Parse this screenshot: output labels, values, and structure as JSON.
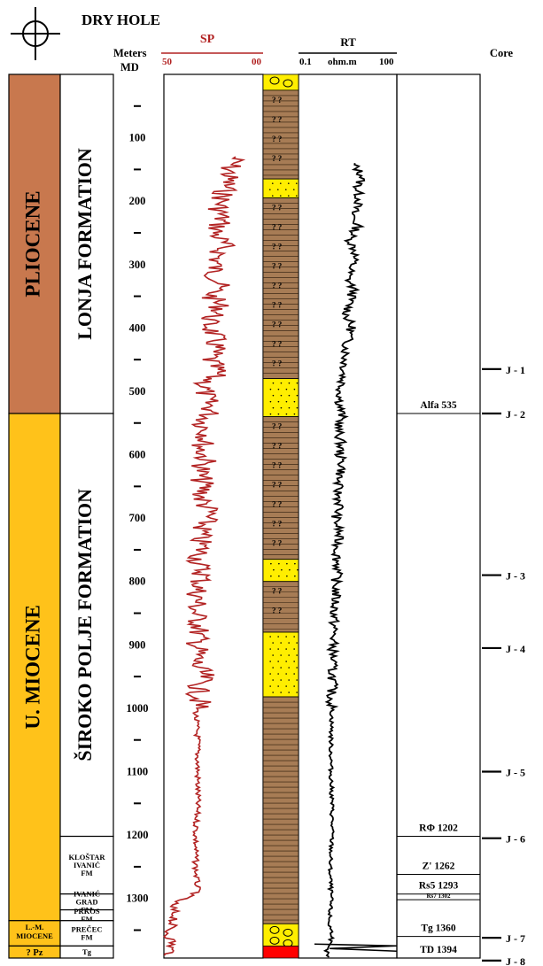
{
  "header": {
    "well_status": "DRY HOLE",
    "meters_label": "Meters",
    "md_label": "MD",
    "sp_label": "SP",
    "sp_scale_left": "50",
    "sp_scale_right": "00",
    "rt_label": "RT",
    "rt_scale_left": "0.1",
    "rt_scale_unit": "ohm.m",
    "rt_scale_right": "100",
    "core_label": "Core"
  },
  "colors": {
    "pliocene": "#c8784e",
    "miocene": "#ffc21a",
    "sand": "#ffee00",
    "shale": "#a77c55",
    "basement": "#ff0000",
    "sp_curve": "#b22222"
  },
  "chronostratigraphy": [
    {
      "label": "PLIOCENE",
      "top": 0,
      "base": 535
    },
    {
      "label": "U. MIOCENE",
      "top": 535,
      "base": 1335
    },
    {
      "label": "L.-M. MIOCENE",
      "top": 1335,
      "base": 1375
    },
    {
      "label": "? Pz",
      "top": 1375,
      "base": 1394
    }
  ],
  "formations": [
    {
      "label": "LONJA FORMATION",
      "top": 0,
      "base": 535,
      "vertical": true
    },
    {
      "label": "ŠIROKO POLJE FORMATION",
      "top": 535,
      "base": 1202,
      "vertical": true
    },
    {
      "label": "KLOŠTAR IVANIĆ FM",
      "top": 1202,
      "base": 1293,
      "vertical": false
    },
    {
      "label": "IVANIĆ GRAD FM",
      "top": 1293,
      "base": 1318,
      "vertical": false
    },
    {
      "label": "PRKOS FM",
      "top": 1318,
      "base": 1335,
      "vertical": false
    },
    {
      "label": "PREČEC FM",
      "top": 1335,
      "base": 1375,
      "vertical": false
    },
    {
      "label": "Tg",
      "top": 1375,
      "base": 1394,
      "vertical": false
    }
  ],
  "depth_ticks": {
    "labels": [
      "100",
      "200",
      "300",
      "400",
      "500",
      "600",
      "700",
      "800",
      "900",
      "1000",
      "1100",
      "1200",
      "1300"
    ],
    "minor_marker": "-"
  },
  "markers": [
    {
      "label": "Alfa 535",
      "depth": 535
    },
    {
      "label": "RΦ 1202",
      "depth": 1202
    },
    {
      "label": "Z' 1262",
      "depth": 1262
    },
    {
      "label": "Rs5 1293",
      "depth": 1293
    },
    {
      "label": "Rs7 1302",
      "depth": 1302
    },
    {
      "label": "Tg 1360",
      "depth": 1360
    },
    {
      "label": "TD 1394",
      "depth": 1394
    }
  ],
  "cores": [
    {
      "label": "J - 1",
      "depth": 465
    },
    {
      "label": "J - 2",
      "depth": 535
    },
    {
      "label": "J - 3",
      "depth": 790
    },
    {
      "label": "J - 4",
      "depth": 905
    },
    {
      "label": "J - 5",
      "depth": 1100
    },
    {
      "label": "J - 6",
      "depth": 1205
    },
    {
      "label": "J - 7",
      "depth": 1362
    },
    {
      "label": "J - 8",
      "depth": 1398
    }
  ],
  "lithology": [
    {
      "type": "conglomerate",
      "top": 0,
      "base": 25
    },
    {
      "type": "shale",
      "top": 25,
      "base": 165
    },
    {
      "type": "sand",
      "top": 165,
      "base": 195
    },
    {
      "type": "shale",
      "top": 195,
      "base": 480
    },
    {
      "type": "sand",
      "top": 480,
      "base": 540
    },
    {
      "type": "shale",
      "top": 540,
      "base": 765
    },
    {
      "type": "sand",
      "top": 765,
      "base": 800
    },
    {
      "type": "shale",
      "top": 800,
      "base": 880
    },
    {
      "type": "sand",
      "top": 880,
      "base": 982
    },
    {
      "type": "shale",
      "top": 982,
      "base": 1340
    },
    {
      "type": "conglomerate",
      "top": 1340,
      "base": 1375
    },
    {
      "type": "basement",
      "top": 1375,
      "base": 1394
    }
  ],
  "chart_data": {
    "type": "line",
    "x_axis": "depth MD (m)",
    "series": [
      {
        "name": "SP",
        "scale": [
          50,
          0
        ],
        "x": [
          130,
          150,
          170,
          190,
          210,
          230,
          250,
          270,
          290,
          310,
          330,
          350,
          370,
          390,
          410,
          430,
          450,
          470,
          490,
          510,
          530,
          550,
          570,
          590,
          610,
          630,
          650,
          670,
          690,
          710,
          730,
          750,
          770,
          790,
          810,
          830,
          850,
          870,
          890,
          910,
          930,
          950,
          970,
          990,
          1010,
          1050,
          1100,
          1150,
          1200,
          1250,
          1290,
          1310,
          1330,
          1350,
          1370,
          1390
        ],
        "values": [
          14,
          17,
          18,
          20,
          22,
          21,
          24,
          20,
          23,
          25,
          22,
          26,
          21,
          28,
          25,
          24,
          27,
          23,
          30,
          29,
          26,
          30,
          28,
          31,
          29,
          32,
          30,
          31,
          27,
          30,
          32,
          31,
          33,
          30,
          33,
          33,
          34,
          32,
          33,
          33,
          34,
          30,
          33,
          32,
          34,
          33,
          33,
          33,
          34,
          34,
          33,
          47,
          44,
          48,
          46,
          47
        ]
      },
      {
        "name": "RT",
        "scale": [
          0.1,
          100
        ],
        "x": [
          140,
          160,
          180,
          200,
          220,
          240,
          260,
          280,
          300,
          320,
          340,
          360,
          380,
          400,
          420,
          440,
          460,
          480,
          500,
          520,
          540,
          560,
          580,
          600,
          620,
          640,
          660,
          680,
          700,
          720,
          740,
          760,
          780,
          800,
          820,
          840,
          860,
          880,
          900,
          920,
          940,
          960,
          980,
          1000,
          1050,
          1100,
          1150,
          1200,
          1250,
          1300,
          1340,
          1360,
          1380,
          1394
        ],
        "values": [
          55,
          65,
          60,
          62,
          55,
          60,
          52,
          58,
          55,
          50,
          56,
          52,
          49,
          54,
          50,
          48,
          47,
          45,
          43,
          42,
          44,
          40,
          43,
          42,
          45,
          40,
          40,
          42,
          38,
          41,
          40,
          39,
          40,
          38,
          38,
          37,
          36,
          36,
          35,
          35,
          34,
          35,
          33,
          34,
          33,
          33,
          34,
          34,
          32,
          33,
          31,
          35,
          28,
          30
        ]
      }
    ]
  }
}
